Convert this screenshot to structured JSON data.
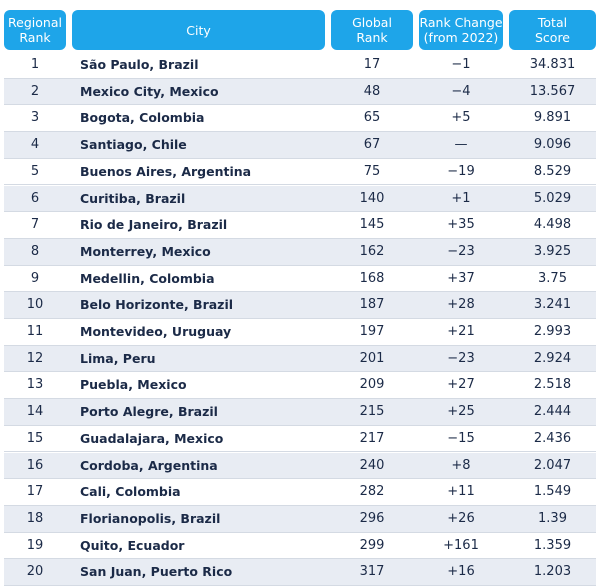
{
  "table": {
    "headers": [
      [
        "Regional",
        "Rank"
      ],
      [
        "City"
      ],
      [
        "Global",
        "Rank"
      ],
      [
        "Rank Change",
        "(from 2022)"
      ],
      [
        "Total",
        "Score"
      ]
    ],
    "rows": [
      [
        "1",
        "São Paulo, Brazil",
        "17",
        "−1",
        "34.831"
      ],
      [
        "2",
        "Mexico City, Mexico",
        "48",
        "−4",
        "13.567"
      ],
      [
        "3",
        "Bogota, Colombia",
        "65",
        "+5",
        "9.891"
      ],
      [
        "4",
        "Santiago, Chile",
        "67",
        "—",
        "9.096"
      ],
      [
        "5",
        "Buenos Aires, Argentina",
        "75",
        "−19",
        "8.529"
      ],
      [
        "6",
        "Curitiba, Brazil",
        "140",
        "+1",
        "5.029"
      ],
      [
        "7",
        "Rio de Janeiro, Brazil",
        "145",
        "+35",
        "4.498"
      ],
      [
        "8",
        "Monterrey, Mexico",
        "162",
        "−23",
        "3.925"
      ],
      [
        "9",
        "Medellin, Colombia",
        "168",
        "+37",
        "3.75"
      ],
      [
        "10",
        "Belo Horizonte, Brazil",
        "187",
        "+28",
        "3.241"
      ],
      [
        "11",
        "Montevideo, Uruguay",
        "197",
        "+21",
        "2.993"
      ],
      [
        "12",
        "Lima, Peru",
        "201",
        "−23",
        "2.924"
      ],
      [
        "13",
        "Puebla, Mexico",
        "209",
        "+27",
        "2.518"
      ],
      [
        "14",
        "Porto Alegre, Brazil",
        "215",
        "+25",
        "2.444"
      ],
      [
        "15",
        "Guadalajara, Mexico",
        "217",
        "−15",
        "2.436"
      ],
      [
        "16",
        "Cordoba, Argentina",
        "240",
        "+8",
        "2.047"
      ],
      [
        "17",
        "Cali, Colombia",
        "282",
        "+11",
        "1.549"
      ],
      [
        "18",
        "Florianopolis, Brazil",
        "296",
        "+26",
        "1.39"
      ],
      [
        "19",
        "Quito, Ecuador",
        "299",
        "+161",
        "1.359"
      ],
      [
        "20",
        "San Juan, Puerto Rico",
        "317",
        "+16",
        "1.203"
      ]
    ]
  }
}
